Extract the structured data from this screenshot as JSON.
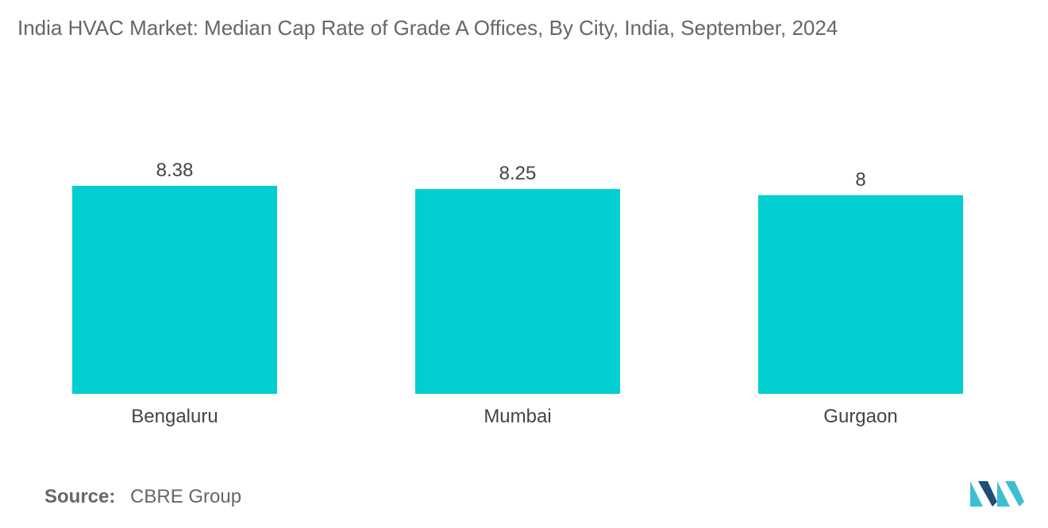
{
  "title": "India HVAC Market: Median Cap Rate of Grade A Offices, By City, India, September, 2024",
  "source": {
    "label": "Source:",
    "value": "CBRE Group"
  },
  "colors": {
    "bar": "#00CED1",
    "text": "#444444",
    "muted": "#666666",
    "logo_dark": "#1F4E79",
    "logo_light": "#3DBFD1"
  },
  "logo": {
    "icon": "mordor-logo-icon"
  },
  "chart_data": {
    "type": "bar",
    "title": "India HVAC Market: Median Cap Rate of Grade A Offices, By City, India, September, 2024",
    "categories": [
      "Bengaluru",
      "Mumbai",
      "Gurgaon"
    ],
    "values": [
      8.38,
      8.25,
      8
    ],
    "value_labels": [
      "8.38",
      "8.25",
      "8"
    ],
    "xlabel": "",
    "ylabel": "",
    "ylim": [
      0,
      8.38
    ],
    "grid": false,
    "legend": "none"
  }
}
